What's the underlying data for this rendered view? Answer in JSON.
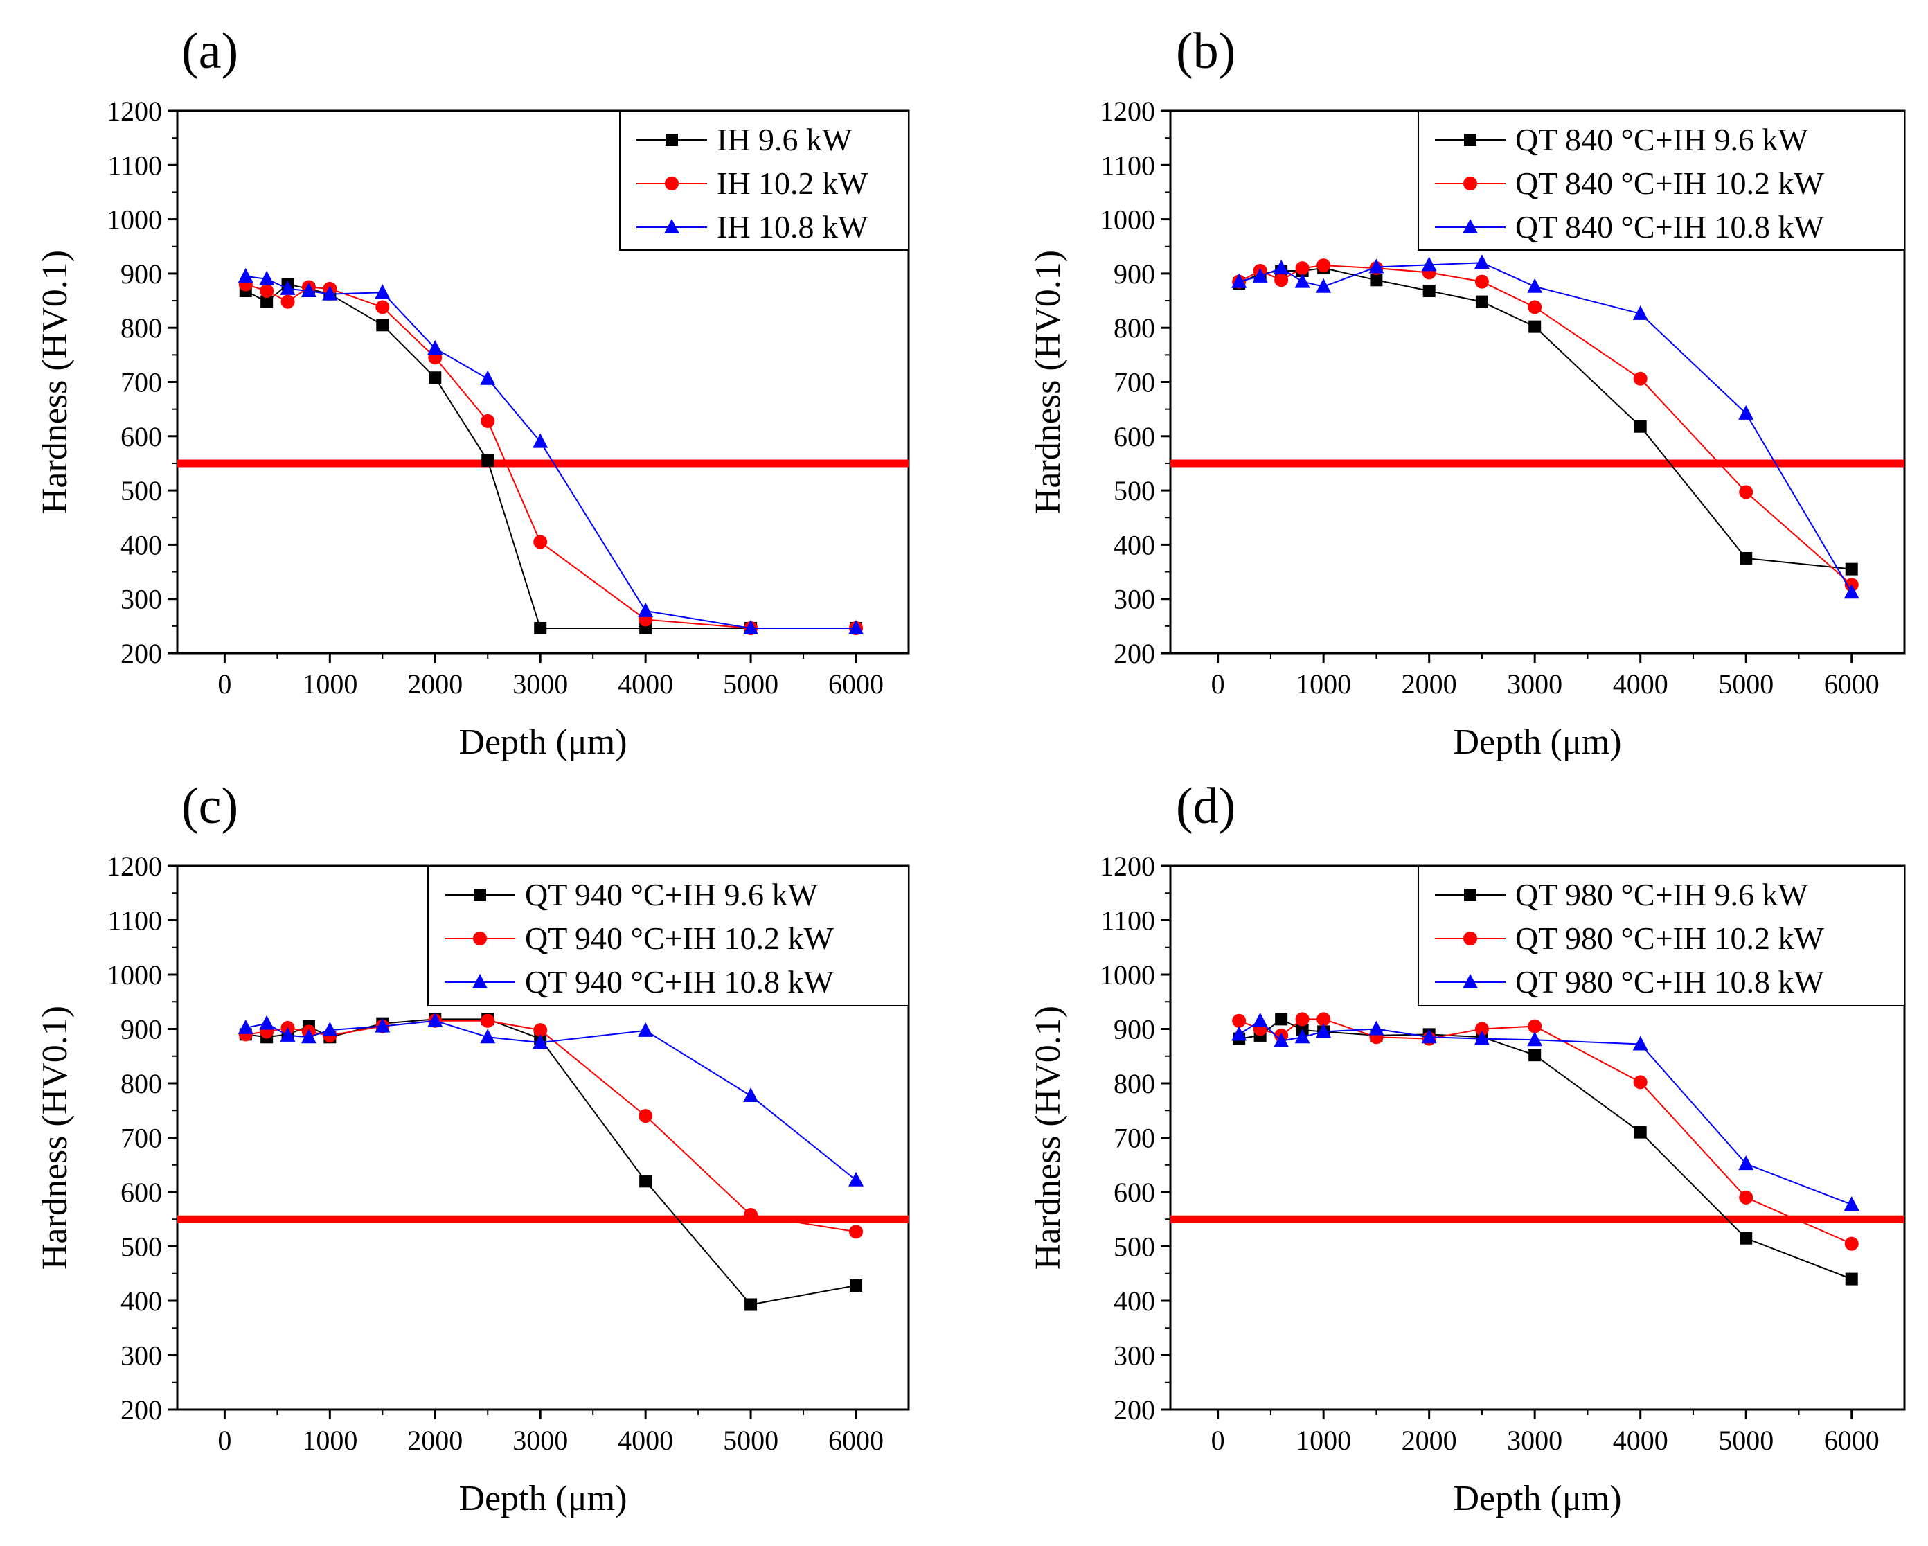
{
  "chart_data": [
    {
      "panel_label": "(a)",
      "type": "line",
      "xlabel": "Depth (μm)",
      "ylabel": "Hardness (HV0.1)",
      "xlim": [
        -450,
        6500
      ],
      "ylim": [
        200,
        1200
      ],
      "xticks": [
        0,
        1000,
        2000,
        3000,
        4000,
        5000,
        6000
      ],
      "yticks": [
        200,
        300,
        400,
        500,
        600,
        700,
        800,
        900,
        1000,
        1100,
        1200
      ],
      "threshold_line": {
        "y": 550,
        "color": "#ff0000"
      },
      "legend_position": "top-right",
      "series": [
        {
          "name": "IH 9.6 kW",
          "color": "#000000",
          "marker": "square",
          "x": [
            200,
            400,
            600,
            800,
            1000,
            1500,
            2000,
            2500,
            3000,
            4000,
            5000,
            6000
          ],
          "y": [
            868,
            848,
            880,
            872,
            862,
            805,
            708,
            555,
            246,
            246,
            246,
            246
          ]
        },
        {
          "name": "IH 10.2 kW",
          "color": "#ff0000",
          "marker": "circle",
          "x": [
            200,
            400,
            600,
            800,
            1000,
            1500,
            2000,
            2500,
            3000,
            4000,
            5000,
            6000
          ],
          "y": [
            880,
            868,
            848,
            875,
            872,
            838,
            745,
            628,
            405,
            262,
            246,
            246
          ]
        },
        {
          "name": "IH 10.8 kW",
          "color": "#0000ff",
          "marker": "triangle",
          "x": [
            200,
            400,
            600,
            800,
            1000,
            1500,
            2000,
            2500,
            3000,
            4000,
            5000,
            6000
          ],
          "y": [
            895,
            890,
            872,
            868,
            862,
            865,
            762,
            706,
            590,
            278,
            246,
            246
          ]
        }
      ]
    },
    {
      "panel_label": "(b)",
      "type": "line",
      "xlabel": "Depth (μm)",
      "ylabel": "Hardness (HV0.1)",
      "xlim": [
        -450,
        6500
      ],
      "ylim": [
        200,
        1200
      ],
      "xticks": [
        0,
        1000,
        2000,
        3000,
        4000,
        5000,
        6000
      ],
      "yticks": [
        200,
        300,
        400,
        500,
        600,
        700,
        800,
        900,
        1000,
        1100,
        1200
      ],
      "threshold_line": {
        "y": 550,
        "color": "#ff0000"
      },
      "legend_position": "top-right",
      "series": [
        {
          "name": "QT 840 °C+IH 9.6 kW",
          "color": "#000000",
          "marker": "square",
          "x": [
            200,
            400,
            600,
            800,
            1000,
            1500,
            2000,
            2500,
            3000,
            4000,
            5000,
            6000
          ],
          "y": [
            882,
            900,
            905,
            905,
            910,
            888,
            868,
            848,
            802,
            618,
            375,
            355
          ]
        },
        {
          "name": "QT 840 °C+IH 10.2 kW",
          "color": "#ff0000",
          "marker": "circle",
          "x": [
            200,
            400,
            600,
            800,
            1000,
            1500,
            2000,
            2500,
            3000,
            4000,
            5000,
            6000
          ],
          "y": [
            885,
            905,
            888,
            910,
            915,
            910,
            902,
            885,
            838,
            706,
            497,
            326
          ]
        },
        {
          "name": "QT 840 °C+IH 10.8 kW",
          "color": "#0000ff",
          "marker": "triangle",
          "x": [
            200,
            400,
            600,
            800,
            1000,
            1500,
            2000,
            2500,
            3000,
            4000,
            5000,
            6000
          ],
          "y": [
            885,
            895,
            910,
            885,
            876,
            912,
            916,
            920,
            876,
            826,
            642,
            312
          ]
        }
      ]
    },
    {
      "panel_label": "(c)",
      "type": "line",
      "xlabel": "Depth (μm)",
      "ylabel": "Hardness (HV0.1)",
      "xlim": [
        -450,
        6500
      ],
      "ylim": [
        200,
        1200
      ],
      "xticks": [
        0,
        1000,
        2000,
        3000,
        4000,
        5000,
        6000
      ],
      "yticks": [
        200,
        300,
        400,
        500,
        600,
        700,
        800,
        900,
        1000,
        1100,
        1200
      ],
      "threshold_line": {
        "y": 550,
        "color": "#ff0000"
      },
      "legend_position": "top-right",
      "series": [
        {
          "name": "QT 940 °C+IH 9.6 kW",
          "color": "#000000",
          "marker": "square",
          "x": [
            200,
            400,
            600,
            800,
            1000,
            1500,
            2000,
            2500,
            3000,
            4000,
            5000,
            6000
          ],
          "y": [
            890,
            885,
            890,
            905,
            885,
            910,
            918,
            918,
            882,
            620,
            393,
            428
          ]
        },
        {
          "name": "QT 940 °C+IH 10.2 kW",
          "color": "#ff0000",
          "marker": "circle",
          "x": [
            200,
            400,
            600,
            800,
            1000,
            1500,
            2000,
            2500,
            3000,
            4000,
            5000,
            6000
          ],
          "y": [
            890,
            895,
            902,
            895,
            888,
            905,
            915,
            915,
            898,
            740,
            558,
            527
          ]
        },
        {
          "name": "QT 940 °C+IH 10.8 kW",
          "color": "#0000ff",
          "marker": "triangle",
          "x": [
            200,
            400,
            600,
            800,
            1000,
            1500,
            2000,
            2500,
            3000,
            4000,
            5000,
            6000
          ],
          "y": [
            902,
            910,
            888,
            885,
            898,
            905,
            915,
            885,
            875,
            897,
            777,
            622
          ]
        }
      ]
    },
    {
      "panel_label": "(d)",
      "type": "line",
      "xlabel": "Depth (μm)",
      "ylabel": "Hardness (HV0.1)",
      "xlim": [
        -450,
        6500
      ],
      "ylim": [
        200,
        1200
      ],
      "xticks": [
        0,
        1000,
        2000,
        3000,
        4000,
        5000,
        6000
      ],
      "yticks": [
        200,
        300,
        400,
        500,
        600,
        700,
        800,
        900,
        1000,
        1100,
        1200
      ],
      "threshold_line": {
        "y": 550,
        "color": "#ff0000"
      },
      "legend_position": "top-right",
      "series": [
        {
          "name": "QT 980 °C+IH 9.6 kW",
          "color": "#000000",
          "marker": "square",
          "x": [
            200,
            400,
            600,
            800,
            1000,
            1500,
            2000,
            2500,
            3000,
            4000,
            5000,
            6000
          ],
          "y": [
            882,
            888,
            918,
            898,
            895,
            888,
            890,
            885,
            852,
            710,
            515,
            440
          ]
        },
        {
          "name": "QT 980 °C+IH 10.2 kW",
          "color": "#ff0000",
          "marker": "circle",
          "x": [
            200,
            400,
            600,
            800,
            1000,
            1500,
            2000,
            2500,
            3000,
            4000,
            5000,
            6000
          ],
          "y": [
            915,
            900,
            888,
            918,
            918,
            885,
            882,
            900,
            905,
            802,
            590,
            505
          ]
        },
        {
          "name": "QT 980 °C+IH 10.8 kW",
          "color": "#0000ff",
          "marker": "triangle",
          "x": [
            200,
            400,
            600,
            800,
            1000,
            1500,
            2000,
            2500,
            3000,
            4000,
            5000,
            6000
          ],
          "y": [
            890,
            915,
            878,
            885,
            895,
            900,
            885,
            882,
            880,
            872,
            652,
            577
          ]
        }
      ]
    }
  ]
}
